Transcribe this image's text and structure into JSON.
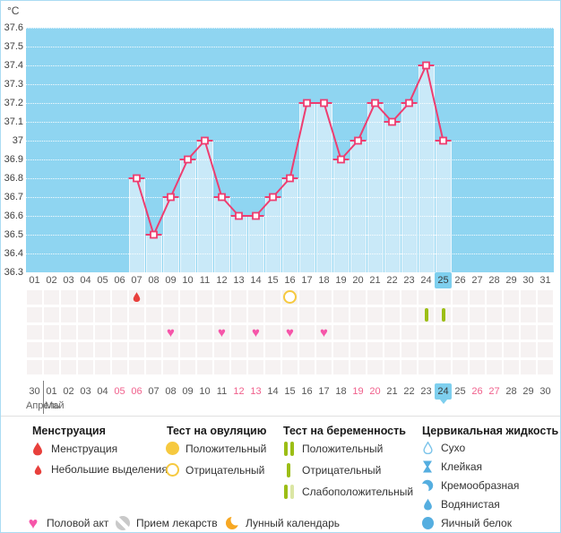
{
  "chart_data": {
    "type": "bar",
    "title": "",
    "ylabel": "°C",
    "ylim": [
      36.3,
      37.6
    ],
    "ytick_step": 0.1,
    "yticks": [
      "37.6",
      "37.5",
      "37.4",
      "37.3",
      "37.2",
      "37.1",
      "37",
      "36.9",
      "36.8",
      "36.7",
      "36.6",
      "36.5",
      "36.4",
      "36.3"
    ],
    "categories": [
      "01",
      "02",
      "03",
      "04",
      "05",
      "06",
      "07",
      "08",
      "09",
      "10",
      "11",
      "12",
      "13",
      "14",
      "15",
      "16",
      "17",
      "18",
      "19",
      "20",
      "21",
      "22",
      "23",
      "24",
      "25",
      "26",
      "27",
      "28",
      "29",
      "30",
      "31"
    ],
    "series": [
      {
        "start_day": 7,
        "values": [
          36.8,
          36.5,
          36.7,
          36.9,
          37.0,
          36.7,
          36.6,
          36.6,
          36.7,
          36.8,
          37.2,
          37.2,
          36.9,
          37.0,
          37.2,
          37.1,
          37.2,
          37.4,
          37.0
        ]
      }
    ],
    "grid": "dotted-horizontal",
    "legend_position": "bottom"
  },
  "day_row": {
    "selected": "25"
  },
  "events": {
    "menstruation_days": [
      7
    ],
    "ovulation_test_negative_days": [
      16
    ],
    "pregnancy_test_negative_days": [
      24,
      25
    ],
    "intercourse_days": [
      9,
      12,
      14,
      16,
      18
    ]
  },
  "calendar_row": {
    "labels": [
      "30",
      "01",
      "02",
      "03",
      "04",
      "05",
      "06",
      "07",
      "08",
      "09",
      "10",
      "11",
      "12",
      "13",
      "14",
      "15",
      "16",
      "17",
      "18",
      "19",
      "20",
      "21",
      "22",
      "23",
      "24",
      "25",
      "26",
      "27",
      "28",
      "29",
      "30"
    ],
    "weekend_labels": [
      "05",
      "06",
      "12",
      "13",
      "19",
      "20",
      "26",
      "27"
    ],
    "selected": "24",
    "month_labels": [
      "Апрель",
      "Май"
    ]
  },
  "legend": {
    "sections": [
      {
        "title": "Менструация",
        "items": [
          {
            "icon": "menstruation-drop-icon",
            "label": "Менструация"
          },
          {
            "icon": "spotting-drop-icon",
            "label": "Небольшие выделения"
          }
        ]
      },
      {
        "title": "Тест на овуляцию",
        "items": [
          {
            "icon": "positive-circle-icon",
            "label": "Положительный"
          },
          {
            "icon": "negative-circle-icon",
            "label": "Отрицательный"
          }
        ]
      },
      {
        "title": "Тест на беременность",
        "items": [
          {
            "icon": "two-bars-icon",
            "label": "Положительный"
          },
          {
            "icon": "one-bar-icon",
            "label": "Отрицательный"
          },
          {
            "icon": "weak-bars-icon",
            "label": "Слабоположительный"
          }
        ]
      },
      {
        "title": "Цервикальная жидкость",
        "items": [
          {
            "icon": "dry-drop-icon",
            "label": "Сухо"
          },
          {
            "icon": "sticky-icon",
            "label": "Клейкая"
          },
          {
            "icon": "creamy-icon",
            "label": "Кремообразная"
          },
          {
            "icon": "watery-drop-icon",
            "label": "Водянистая"
          },
          {
            "icon": "eggwhite-icon",
            "label": "Яичный белок"
          }
        ]
      }
    ],
    "bottom_items": [
      {
        "icon": "heart-icon",
        "label": "Половой акт"
      },
      {
        "icon": "pill-icon",
        "label": "Прием лекарств"
      },
      {
        "icon": "moon-icon",
        "label": "Лунный календарь"
      }
    ]
  },
  "colors": {
    "sky": "#8FD5F1",
    "bar": "#C9E9F8",
    "line": "#EE3D70",
    "selected_day_bg": "#7ECFEE",
    "weekend_text": "#F0608C",
    "menstruation": "#E8403C",
    "ovulation": "#F6C93F",
    "pregnancy": "#9CBE16",
    "pregnancy_pale": "#DBE6A4",
    "heart": "#F655A9",
    "cervical": "#55AEE0",
    "pill": "#C9C9C9",
    "moon": "#F7A823"
  }
}
